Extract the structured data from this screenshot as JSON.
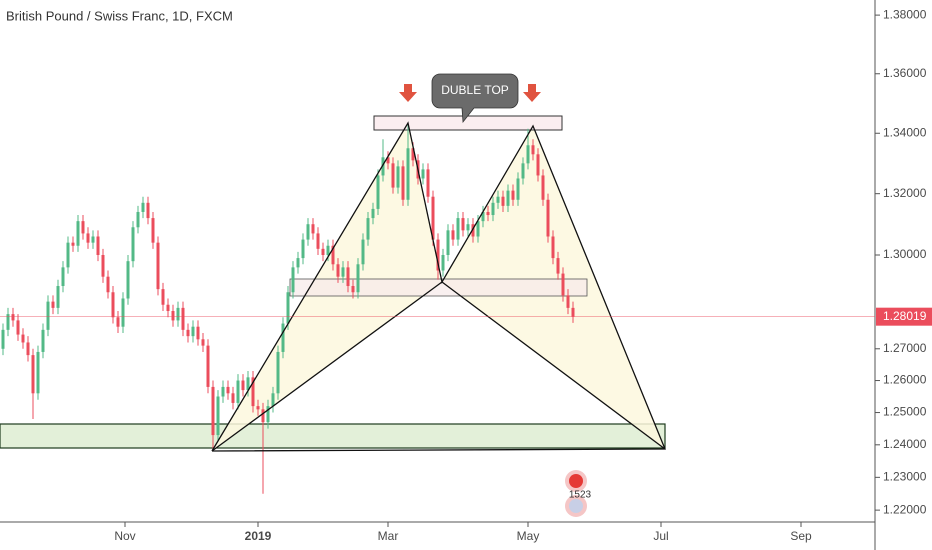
{
  "chart_data": {
    "type": "candlestick",
    "title": "British Pound / Swiss Franc, 1D, FXCM",
    "annotation": "DUBLE TOP",
    "events_badge": "1523",
    "log_scale": true,
    "grid": false,
    "up_color": "#53b987",
    "down_color": "#eb4d5c",
    "open": [
      1.27,
      1.276,
      1.281,
      1.279,
      1.2745,
      1.272,
      1.268,
      1.256,
      1.269,
      1.276,
      1.285,
      1.283,
      1.29,
      1.296,
      1.304,
      1.303,
      1.311,
      1.307,
      1.304,
      1.306,
      1.3,
      1.293,
      1.288,
      1.28,
      1.277,
      1.286,
      1.298,
      1.309,
      1.314,
      1.317,
      1.312,
      1.304,
      1.289,
      1.284,
      1.282,
      1.279,
      1.283,
      1.276,
      1.274,
      1.277,
      1.273,
      1.271,
      1.258,
      1.243,
      1.255,
      1.258,
      1.256,
      1.253,
      1.26,
      1.257,
      1.261,
      1.252,
      1.251,
      1.247,
      1.252,
      1.256,
      1.269,
      1.278,
      1.288,
      1.296,
      1.299,
      1.305,
      1.31,
      1.307,
      1.302,
      1.3,
      1.303,
      1.297,
      1.293,
      1.296,
      1.29,
      1.288,
      1.297,
      1.305,
      1.312,
      1.315,
      1.326,
      1.332,
      1.33,
      1.322,
      1.329,
      1.318,
      1.335,
      1.331,
      1.325,
      1.328,
      1.319,
      1.305,
      1.295,
      1.3,
      1.308,
      1.305,
      1.312,
      1.308,
      1.31,
      1.306,
      1.311,
      1.314,
      1.313,
      1.317,
      1.319,
      1.316,
      1.321,
      1.318,
      1.325,
      1.33,
      1.336,
      1.333,
      1.326,
      1.318,
      1.306,
      1.299,
      1.294,
      1.287,
      1.283
    ],
    "high": [
      1.278,
      1.283,
      1.283,
      1.281,
      1.2765,
      1.274,
      1.27,
      1.271,
      1.278,
      1.287,
      1.287,
      1.292,
      1.298,
      1.306,
      1.306,
      1.313,
      1.313,
      1.309,
      1.308,
      1.308,
      1.302,
      1.295,
      1.29,
      1.282,
      1.288,
      1.3,
      1.311,
      1.316,
      1.319,
      1.319,
      1.314,
      1.306,
      1.291,
      1.286,
      1.284,
      1.285,
      1.285,
      1.278,
      1.279,
      1.279,
      1.275,
      1.273,
      1.26,
      1.257,
      1.26,
      1.26,
      1.258,
      1.262,
      1.262,
      1.263,
      1.263,
      1.254,
      1.253,
      1.254,
      1.258,
      1.271,
      1.28,
      1.29,
      1.298,
      1.301,
      1.307,
      1.312,
      1.312,
      1.309,
      1.304,
      1.305,
      1.305,
      1.299,
      1.298,
      1.298,
      1.292,
      1.299,
      1.307,
      1.314,
      1.317,
      1.328,
      1.338,
      1.334,
      1.332,
      1.331,
      1.331,
      1.343,
      1.337,
      1.333,
      1.33,
      1.33,
      1.321,
      1.307,
      1.302,
      1.31,
      1.31,
      1.314,
      1.314,
      1.312,
      1.312,
      1.313,
      1.316,
      1.316,
      1.319,
      1.321,
      1.321,
      1.323,
      1.323,
      1.327,
      1.332,
      1.3415,
      1.338,
      1.335,
      1.328,
      1.32,
      1.308,
      1.301,
      1.296,
      1.289,
      1.285
    ],
    "low": [
      1.268,
      1.274,
      1.277,
      1.2725,
      1.27,
      1.266,
      1.248,
      1.254,
      1.267,
      1.274,
      1.281,
      1.281,
      1.288,
      1.294,
      1.301,
      1.301,
      1.305,
      1.302,
      1.302,
      1.298,
      1.291,
      1.286,
      1.278,
      1.275,
      1.275,
      1.284,
      1.296,
      1.307,
      1.312,
      1.31,
      1.302,
      1.287,
      1.282,
      1.28,
      1.277,
      1.277,
      1.274,
      1.272,
      1.272,
      1.271,
      1.269,
      1.256,
      1.238,
      1.241,
      1.253,
      1.254,
      1.251,
      1.251,
      1.255,
      1.255,
      1.25,
      1.249,
      1.225,
      1.245,
      1.25,
      1.254,
      1.267,
      1.276,
      1.286,
      1.294,
      1.297,
      1.303,
      1.305,
      1.3,
      1.298,
      1.298,
      1.295,
      1.291,
      1.291,
      1.288,
      1.286,
      1.286,
      1.295,
      1.303,
      1.31,
      1.313,
      1.324,
      1.328,
      1.32,
      1.32,
      1.316,
      1.316,
      1.329,
      1.323,
      1.323,
      1.317,
      1.303,
      1.292,
      1.293,
      1.298,
      1.303,
      1.303,
      1.306,
      1.306,
      1.304,
      1.304,
      1.309,
      1.311,
      1.311,
      1.315,
      1.314,
      1.314,
      1.316,
      1.316,
      1.323,
      1.328,
      1.331,
      1.324,
      1.316,
      1.304,
      1.297,
      1.292,
      1.285,
      1.281,
      1.2782
    ],
    "close": [
      1.276,
      1.281,
      1.279,
      1.2745,
      1.272,
      1.268,
      1.256,
      1.269,
      1.276,
      1.285,
      1.283,
      1.29,
      1.296,
      1.304,
      1.303,
      1.311,
      1.307,
      1.304,
      1.306,
      1.3,
      1.293,
      1.288,
      1.28,
      1.277,
      1.286,
      1.298,
      1.309,
      1.314,
      1.317,
      1.312,
      1.304,
      1.289,
      1.284,
      1.282,
      1.279,
      1.283,
      1.276,
      1.274,
      1.277,
      1.273,
      1.271,
      1.258,
      1.243,
      1.255,
      1.258,
      1.256,
      1.253,
      1.26,
      1.257,
      1.261,
      1.252,
      1.251,
      1.247,
      1.252,
      1.256,
      1.269,
      1.278,
      1.288,
      1.296,
      1.299,
      1.305,
      1.31,
      1.307,
      1.302,
      1.3,
      1.303,
      1.297,
      1.293,
      1.296,
      1.29,
      1.288,
      1.297,
      1.305,
      1.312,
      1.315,
      1.326,
      1.332,
      1.33,
      1.322,
      1.329,
      1.318,
      1.335,
      1.331,
      1.325,
      1.328,
      1.319,
      1.305,
      1.295,
      1.3,
      1.308,
      1.305,
      1.312,
      1.308,
      1.31,
      1.306,
      1.311,
      1.314,
      1.313,
      1.317,
      1.319,
      1.316,
      1.321,
      1.318,
      1.325,
      1.33,
      1.336,
      1.333,
      1.326,
      1.318,
      1.306,
      1.299,
      1.294,
      1.287,
      1.283,
      1.28019
    ],
    "xlim": [
      -0.6,
      174.4
    ],
    "xticks": [
      {
        "value": 24.4,
        "label": "Nov"
      },
      {
        "value": 51,
        "label": "2019"
      },
      {
        "value": 77,
        "label": "Mar"
      },
      {
        "value": 105,
        "label": "May"
      },
      {
        "value": 131.6,
        "label": "Jul"
      },
      {
        "value": 159.6,
        "label": "Sep"
      }
    ],
    "ylim": [
      1.2164,
      1.3852
    ],
    "yticks": [
      {
        "value": 1.22,
        "label": "1.22000"
      },
      {
        "value": 1.23,
        "label": "1.23000"
      },
      {
        "value": 1.24,
        "label": "1.24000"
      },
      {
        "value": 1.25,
        "label": "1.25000"
      },
      {
        "value": 1.26,
        "label": "1.26000"
      },
      {
        "value": 1.27,
        "label": "1.27000"
      },
      {
        "value": 1.3,
        "label": "1.30000"
      },
      {
        "value": 1.32,
        "label": "1.32000"
      },
      {
        "value": 1.34,
        "label": "1.34000"
      },
      {
        "value": 1.36,
        "label": "1.36000"
      },
      {
        "value": 1.38,
        "label": "1.38000"
      }
    ]
  }
}
